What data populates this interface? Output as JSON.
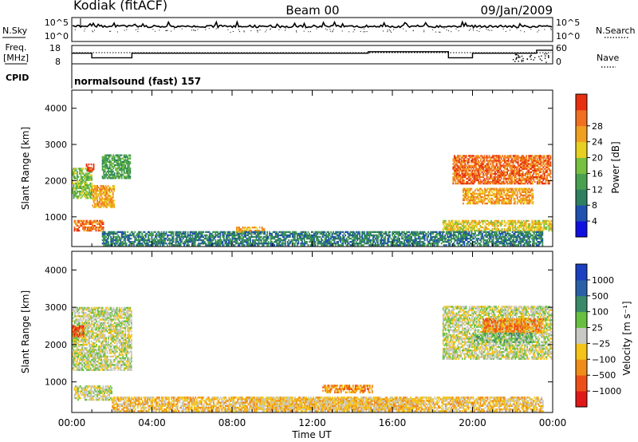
{
  "header": {
    "station": "Kodiak (fitACF)",
    "beam": "Beam 00",
    "date": "09/Jan/2009"
  },
  "colors": {
    "power": [
      "#1010e0",
      "#2050b0",
      "#2f8060",
      "#48a050",
      "#78c040",
      "#e8d020",
      "#f0a020",
      "#f07020",
      "#e83010"
    ],
    "velocity": [
      "#1a3fc0",
      "#2a60a8",
      "#3a8a6a",
      "#68c040",
      "#c8c8c4",
      "#f4c418",
      "#f08c18",
      "#ec5018",
      "#e01818"
    ]
  },
  "chart_data": [
    {
      "id": "nsky-nsearch",
      "type": "line",
      "left_label": "N.Sky",
      "right_label": "N.Search",
      "left_ticks": [
        "10^5",
        "10^0"
      ],
      "right_ticks": [
        "10^5",
        "10^0"
      ]
    },
    {
      "id": "freq-nave",
      "type": "line",
      "left_label_line1": "Freq.",
      "left_label_line2": "[MHz]",
      "right_label": "Nave",
      "left_ticks": [
        "18",
        "8"
      ],
      "right_ticks": [
        "60",
        "0"
      ],
      "freq_mhz_steps": [
        {
          "t0": 0.0,
          "t1": 1.0,
          "v": 15
        },
        {
          "t0": 1.0,
          "t1": 3.0,
          "v": 12
        },
        {
          "t0": 3.0,
          "t1": 14.8,
          "v": 15
        },
        {
          "t0": 14.8,
          "t1": 18.8,
          "v": 16
        },
        {
          "t0": 18.8,
          "t1": 20.0,
          "v": 12
        },
        {
          "t0": 20.0,
          "t1": 23.2,
          "v": 15
        },
        {
          "t0": 23.2,
          "t1": 24.0,
          "v": 17
        }
      ]
    },
    {
      "id": "cpid",
      "type": "table",
      "label": "CPID",
      "text": "normalsound (fast) 157"
    },
    {
      "id": "power",
      "type": "heatmap",
      "ylabel": "Slant Range [km]",
      "ylim": [
        180,
        4500
      ],
      "yticks": [
        1000,
        2000,
        3000,
        4000
      ],
      "xlim": [
        0,
        24
      ],
      "colorbar_label": "Power [dB]",
      "colorbar_ticks": [
        "4",
        "8",
        "12",
        "16",
        "20",
        "24",
        "28"
      ],
      "regions": [
        {
          "t0": 0.0,
          "t1": 1.0,
          "r0": 1500,
          "r1": 2350,
          "c": 4
        },
        {
          "t0": 1.0,
          "t1": 2.1,
          "r0": 1250,
          "r1": 1850,
          "c": 6
        },
        {
          "t0": 1.5,
          "t1": 2.9,
          "r0": 2050,
          "r1": 2700,
          "c": 3
        },
        {
          "t0": 0.1,
          "t1": 1.6,
          "r0": 600,
          "r1": 900,
          "c": 7
        },
        {
          "t0": 0.7,
          "t1": 1.1,
          "r0": 2250,
          "r1": 2450,
          "c": 8
        },
        {
          "t0": 8.2,
          "t1": 9.6,
          "r0": 550,
          "r1": 700,
          "c": 6
        },
        {
          "t0": 19.0,
          "t1": 23.9,
          "r0": 1900,
          "r1": 2700,
          "c": 7
        },
        {
          "t0": 19.5,
          "t1": 23.0,
          "r0": 1350,
          "r1": 1800,
          "c": 6
        },
        {
          "t0": 18.5,
          "t1": 23.9,
          "r0": 600,
          "r1": 900,
          "c": 5
        },
        {
          "t0": 1.5,
          "t1": 23.5,
          "r0": 200,
          "r1": 600,
          "c": 2
        }
      ]
    },
    {
      "id": "velocity",
      "type": "heatmap",
      "ylabel": "Slant Range [km]",
      "ylim": [
        180,
        4500
      ],
      "yticks": [
        1000,
        2000,
        3000,
        4000
      ],
      "xlim": [
        0,
        24
      ],
      "xlabel": "Time UT",
      "xticks": [
        "00:00",
        "04:00",
        "08:00",
        "12:00",
        "16:00",
        "20:00",
        "00:00"
      ],
      "colorbar_label": "Velocity [m s⁻¹]",
      "colorbar_ticks": [
        "1000",
        "500",
        "100",
        "25",
        "−25",
        "−100",
        "−500",
        "−1000"
      ],
      "regions": [
        {
          "t0": 0.0,
          "t1": 3.0,
          "r0": 1300,
          "r1": 3000,
          "c": 4
        },
        {
          "t0": 0.0,
          "t1": 0.6,
          "r0": 2200,
          "r1": 2500,
          "c": 7
        },
        {
          "t0": 0.1,
          "t1": 2.0,
          "r0": 500,
          "r1": 900,
          "c": 4
        },
        {
          "t0": 18.5,
          "t1": 23.9,
          "r0": 1600,
          "r1": 3000,
          "c": 4
        },
        {
          "t0": 20.5,
          "t1": 23.5,
          "r0": 2300,
          "r1": 2700,
          "c": 6
        },
        {
          "t0": 20.0,
          "t1": 23.0,
          "r0": 2050,
          "r1": 2300,
          "c": 3
        },
        {
          "t0": 9.0,
          "t1": 17.5,
          "r0": 250,
          "r1": 550,
          "c": 5
        },
        {
          "t0": 12.5,
          "t1": 15.0,
          "r0": 700,
          "r1": 900,
          "c": 6
        },
        {
          "t0": 2.0,
          "t1": 23.5,
          "r0": 200,
          "r1": 600,
          "c": 5
        }
      ]
    }
  ]
}
